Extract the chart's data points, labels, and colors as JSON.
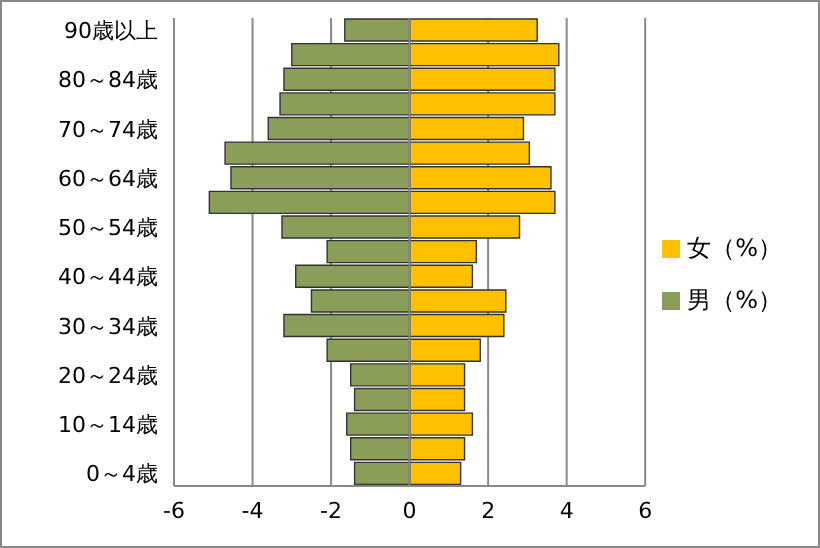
{
  "chart_data": {
    "type": "bar",
    "orientation": "horizontal",
    "stacked": true,
    "categories": [
      "90歳以上",
      null,
      "80～84歳",
      null,
      "70～74歳",
      null,
      "60～64歳",
      null,
      "50～54歳",
      null,
      "40～44歳",
      null,
      "30～34歳",
      null,
      "20～24歳",
      null,
      "10～14歳",
      null,
      "0～4歳"
    ],
    "series": [
      {
        "name": "女（%）",
        "color": "#ffc000",
        "values": [
          3.25,
          3.8,
          3.7,
          3.7,
          2.9,
          3.05,
          3.6,
          3.7,
          2.8,
          1.7,
          1.6,
          2.45,
          2.4,
          1.8,
          1.4,
          1.4,
          1.6,
          1.4,
          1.3
        ]
      },
      {
        "name": "男（%）",
        "color": "#8a9e5a",
        "values": [
          -1.65,
          -3.0,
          -3.2,
          -3.3,
          -3.6,
          -4.7,
          -4.55,
          -5.1,
          -3.25,
          -2.1,
          -2.9,
          -2.5,
          -3.2,
          -2.1,
          -1.5,
          -1.4,
          -1.6,
          -1.5,
          -1.4
        ]
      }
    ],
    "xlim": [
      -6,
      6
    ],
    "xticks": [
      -6,
      -4,
      -2,
      0,
      2,
      4,
      6
    ],
    "grid": "x",
    "legend": "right"
  }
}
